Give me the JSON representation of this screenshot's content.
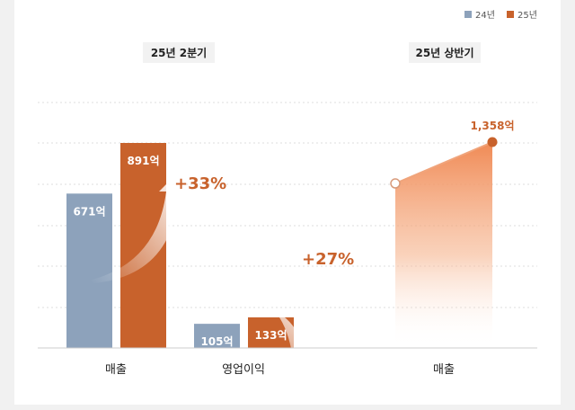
{
  "colors": {
    "y24": "#8da2bb",
    "y25": "#c8622c",
    "accent_text": "#c8622c",
    "grid": "#dddddd"
  },
  "legend": {
    "y24_label": "24년",
    "y25_label": "25년",
    "placement": "top-right"
  },
  "chart_data": [
    {
      "type": "bar",
      "title": "25년 2분기",
      "categories": [
        "매출",
        "영업이익"
      ],
      "series": [
        {
          "name": "24년",
          "values": [
            671,
            105
          ]
        },
        {
          "name": "25년",
          "values": [
            891,
            133
          ]
        }
      ],
      "value_labels": {
        "24년": [
          "671억",
          "105억"
        ],
        "25년": [
          "891억",
          "133억"
        ]
      },
      "growth_labels": [
        "+33%",
        "+27%"
      ],
      "ylim": [
        0,
        1000
      ],
      "grid": true
    },
    {
      "type": "area",
      "title": "25년 상반기",
      "categories": [
        "매출"
      ],
      "series": [
        {
          "name": "24년",
          "values": [
            1085
          ]
        },
        {
          "name": "25년",
          "values": [
            1358
          ]
        }
      ],
      "value_labels": {
        "25년": "1,358억"
      },
      "ylim": [
        0,
        1500
      ],
      "grid": true
    }
  ]
}
